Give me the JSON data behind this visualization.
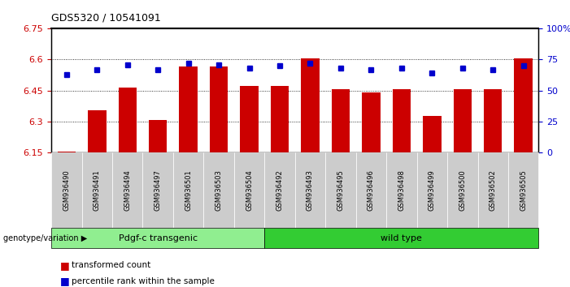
{
  "title": "GDS5320 / 10541091",
  "samples": [
    "GSM936490",
    "GSM936491",
    "GSM936494",
    "GSM936497",
    "GSM936501",
    "GSM936503",
    "GSM936504",
    "GSM936492",
    "GSM936493",
    "GSM936495",
    "GSM936496",
    "GSM936498",
    "GSM936499",
    "GSM936500",
    "GSM936502",
    "GSM936505"
  ],
  "bar_values": [
    6.151,
    6.355,
    6.465,
    6.305,
    6.565,
    6.565,
    6.47,
    6.47,
    6.605,
    6.455,
    6.44,
    6.455,
    6.325,
    6.455,
    6.455,
    6.605
  ],
  "percentile_values": [
    63,
    67,
    71,
    67,
    72,
    71,
    68,
    70,
    72,
    68,
    67,
    68,
    64,
    68,
    67,
    70
  ],
  "bar_color": "#cc0000",
  "dot_color": "#0000cc",
  "ylim_left": [
    6.15,
    6.75
  ],
  "ylim_right": [
    0,
    100
  ],
  "yticks_left": [
    6.15,
    6.3,
    6.45,
    6.6,
    6.75
  ],
  "yticks_right": [
    0,
    25,
    50,
    75,
    100
  ],
  "ytick_labels_right": [
    "0",
    "25",
    "50",
    "75",
    "100%"
  ],
  "group1_label": "Pdgf-c transgenic",
  "group2_label": "wild type",
  "group1_count": 7,
  "group2_count": 9,
  "genotype_label": "genotype/variation",
  "legend_bar": "transformed count",
  "legend_dot": "percentile rank within the sample",
  "bar_width": 0.6,
  "background_color": "#ffffff",
  "plot_bg_color": "#ffffff",
  "tick_label_color_left": "#cc0000",
  "tick_label_color_right": "#0000cc",
  "group1_bg": "#90ee90",
  "group2_bg": "#33cc33",
  "sample_bg": "#cccccc"
}
